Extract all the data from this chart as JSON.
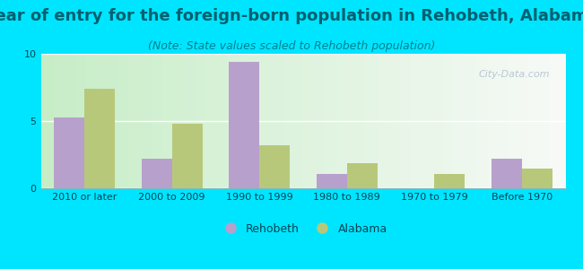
{
  "title": "Year of entry for the foreign-born population in Rehobeth, Alabama",
  "subtitle": "(Note: State values scaled to Rehobeth population)",
  "categories": [
    "2010 or later",
    "2000 to 2009",
    "1990 to 1999",
    "1980 to 1989",
    "1970 to 1979",
    "Before 1970"
  ],
  "rehobeth_values": [
    5.3,
    2.2,
    9.4,
    1.1,
    0.0,
    2.2
  ],
  "alabama_values": [
    7.4,
    4.8,
    3.2,
    1.9,
    1.1,
    1.5
  ],
  "rehobeth_color": "#b8a0cc",
  "alabama_color": "#b8c87a",
  "ylim": [
    0,
    10
  ],
  "yticks": [
    0,
    5,
    10
  ],
  "bar_width": 0.35,
  "background_color_outer": "#00e5ff",
  "title_color": "#006070",
  "subtitle_color": "#008090",
  "title_fontsize": 13,
  "subtitle_fontsize": 9,
  "tick_label_fontsize": 8,
  "legend_fontsize": 9,
  "watermark": "City-Data.com"
}
